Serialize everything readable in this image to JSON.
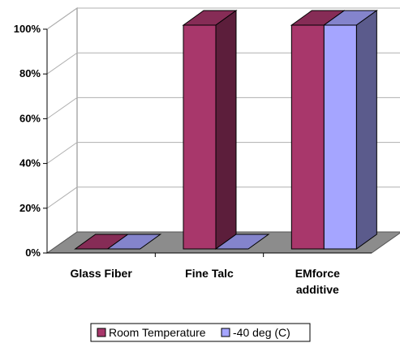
{
  "chart_data": {
    "type": "bar",
    "categories": [
      "Glass Fiber",
      "Fine Talc",
      "EMforce\nadditive"
    ],
    "series": [
      {
        "name": "Room Temperature",
        "values": [
          0,
          100,
          100
        ],
        "color": "#A8376B"
      },
      {
        "name": "-40 deg (C)",
        "values": [
          0,
          0,
          100
        ],
        "color": "#A5A5FF"
      }
    ],
    "yticks": [
      "0%",
      "20%",
      "40%",
      "60%",
      "80%",
      "100%"
    ],
    "ylim": [
      0,
      100
    ],
    "grid": true,
    "legend_position": "bottom"
  }
}
